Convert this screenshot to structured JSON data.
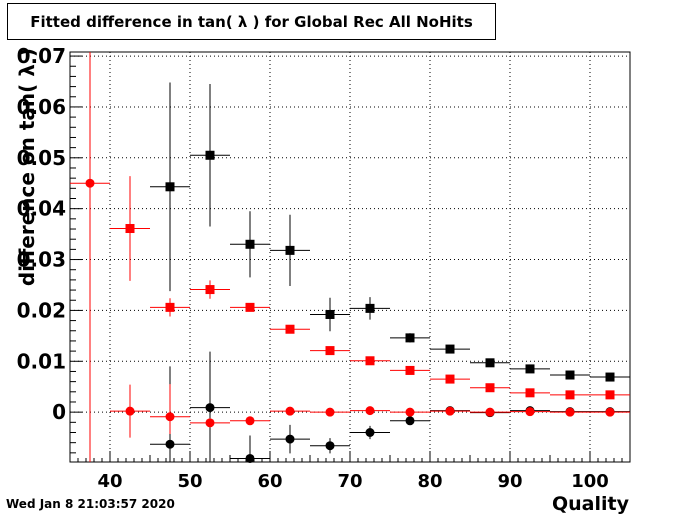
{
  "title": "Fitted difference in tan( λ ) for Global Rec All NoHits",
  "datestamp": "Wed Jan  8 21:03:57 2020",
  "chart_data": {
    "type": "scatter",
    "title": "Fitted difference in tan( λ ) for Global Rec All NoHits",
    "xlabel": "Quality",
    "ylabel": "difference on tan( λ )",
    "xlim": [
      35,
      105
    ],
    "ylim": [
      -0.0098,
      0.0708
    ],
    "grid": true,
    "x_ticks": [
      40,
      50,
      60,
      70,
      80,
      90,
      100
    ],
    "x_tick_labels": [
      "40",
      "50",
      "60",
      "70",
      "80",
      "90",
      "100"
    ],
    "y_ticks": [
      0,
      0.01,
      0.02,
      0.03,
      0.04,
      0.05,
      0.06,
      0.07
    ],
    "y_tick_labels": [
      "0",
      "0.01",
      "0.02",
      "0.03",
      "0.04",
      "0.05",
      "0.06",
      "0.07"
    ],
    "series": [
      {
        "color": "#000000",
        "marker": "square",
        "points": [
          {
            "x": 47.5,
            "y": 0.0443,
            "xerr": 2.5,
            "yerr": [
              0.0205,
              0.0205
            ]
          },
          {
            "x": 52.5,
            "y": 0.0505,
            "xerr": 2.5,
            "yerr": [
              0.014,
              0.014
            ]
          },
          {
            "x": 57.5,
            "y": 0.033,
            "xerr": 2.5,
            "yerr": [
              0.0065,
              0.0065
            ]
          },
          {
            "x": 62.5,
            "y": 0.0318,
            "xerr": 2.5,
            "yerr": [
              0.007,
              0.007
            ]
          },
          {
            "x": 67.5,
            "y": 0.0192,
            "xerr": 2.5,
            "yerr": [
              0.0033,
              0.0033
            ]
          },
          {
            "x": 72.5,
            "y": 0.0204,
            "xerr": 2.5,
            "yerr": [
              0.0022,
              0.0022
            ]
          },
          {
            "x": 77.5,
            "y": 0.0146,
            "xerr": 2.5,
            "yerr": [
              0.0009,
              0.0009
            ]
          },
          {
            "x": 82.5,
            "y": 0.0124,
            "xerr": 2.5,
            "yerr": [
              0.0005,
              0.0005
            ]
          },
          {
            "x": 87.5,
            "y": 0.0097,
            "xerr": 2.5,
            "yerr": [
              0.0004,
              0.0004
            ]
          },
          {
            "x": 92.5,
            "y": 0.0085,
            "xerr": 2.5,
            "yerr": [
              0.0003,
              0.0003
            ]
          },
          {
            "x": 97.5,
            "y": 0.0073,
            "xerr": 2.5,
            "yerr": [
              0.0002,
              0.0002
            ]
          },
          {
            "x": 102.5,
            "y": 0.0069,
            "xerr": 2.5,
            "yerr": [
              0.0002,
              0.0002
            ]
          }
        ]
      },
      {
        "color": "#ff0000",
        "marker": "square",
        "points": [
          {
            "x": 42.5,
            "y": 0.0361,
            "xerr": 2.5,
            "yerr": [
              0.0103,
              0.0103
            ]
          },
          {
            "x": 47.5,
            "y": 0.0206,
            "xerr": 2.5,
            "yerr": [
              0.0018,
              0.0018
            ]
          },
          {
            "x": 52.5,
            "y": 0.0241,
            "xerr": 2.5,
            "yerr": [
              0.0018,
              0.0018
            ]
          },
          {
            "x": 57.5,
            "y": 0.0206,
            "xerr": 2.5,
            "yerr": [
              0.0008,
              0.0008
            ]
          },
          {
            "x": 62.5,
            "y": 0.0163,
            "xerr": 2.5,
            "yerr": [
              0.0005,
              0.0005
            ]
          },
          {
            "x": 67.5,
            "y": 0.0121,
            "xerr": 2.5,
            "yerr": [
              0.0004,
              0.0004
            ]
          },
          {
            "x": 72.5,
            "y": 0.0101,
            "xerr": 2.5,
            "yerr": [
              0.0003,
              0.0003
            ]
          },
          {
            "x": 77.5,
            "y": 0.0082,
            "xerr": 2.5,
            "yerr": [
              0.0002,
              0.0002
            ]
          },
          {
            "x": 82.5,
            "y": 0.0065,
            "xerr": 2.5,
            "yerr": [
              0.0002,
              0.0002
            ]
          },
          {
            "x": 87.5,
            "y": 0.0048,
            "xerr": 2.5,
            "yerr": [
              0.0002,
              0.0002
            ]
          },
          {
            "x": 92.5,
            "y": 0.0038,
            "xerr": 2.5,
            "yerr": [
              0.0002,
              0.0002
            ]
          },
          {
            "x": 97.5,
            "y": 0.0034,
            "xerr": 2.5,
            "yerr": [
              0.0002,
              0.0002
            ]
          },
          {
            "x": 102.5,
            "y": 0.0034,
            "xerr": 2.5,
            "yerr": [
              0.0002,
              0.0002
            ]
          }
        ]
      },
      {
        "color": "#000000",
        "marker": "circle",
        "points": [
          {
            "x": 47.5,
            "y": -0.0063,
            "xerr": 2.5,
            "yerr": [
              0.0035,
              0.0153
            ]
          },
          {
            "x": 52.5,
            "y": 0.0009,
            "xerr": 2.5,
            "yerr": [
              0.011,
              0.011
            ]
          },
          {
            "x": 57.5,
            "y": -0.0091,
            "xerr": 2.5,
            "yerr": [
              0.0007,
              0.0045
            ]
          },
          {
            "x": 62.5,
            "y": -0.0053,
            "xerr": 2.5,
            "yerr": [
              0.0028,
              0.0028
            ]
          },
          {
            "x": 67.5,
            "y": -0.0066,
            "xerr": 2.5,
            "yerr": [
              0.0015,
              0.0015
            ]
          },
          {
            "x": 72.5,
            "y": -0.004,
            "xerr": 2.5,
            "yerr": [
              0.0013,
              0.0013
            ]
          },
          {
            "x": 77.5,
            "y": -0.0017,
            "xerr": 2.5,
            "yerr": [
              0.0006,
              0.0006
            ]
          },
          {
            "x": 82.5,
            "y": 0.0003,
            "xerr": 2.5,
            "yerr": [
              0.0003,
              0.0003
            ]
          },
          {
            "x": 87.5,
            "y": -0.0001,
            "xerr": 2.5,
            "yerr": [
              0.0002,
              0.0002
            ]
          },
          {
            "x": 92.5,
            "y": 0.0003,
            "xerr": 2.5,
            "yerr": [
              0.0002,
              0.0002
            ]
          },
          {
            "x": 97.5,
            "y": 0.0001,
            "xerr": 2.5,
            "yerr": [
              0.0001,
              0.0001
            ]
          },
          {
            "x": 102.5,
            "y": 0.0001,
            "xerr": 2.5,
            "yerr": [
              0.0001,
              0.0001
            ]
          }
        ]
      },
      {
        "color": "#ff0000",
        "marker": "circle",
        "points": [
          {
            "x": 37.5,
            "y": 0.045,
            "xerr": 2.5,
            "yerr": [
              0.0548,
              0.0258
            ]
          },
          {
            "x": 42.5,
            "y": 0.0002,
            "xerr": 2.5,
            "yerr": [
              0.0052,
              0.0052
            ]
          },
          {
            "x": 47.5,
            "y": -0.0009,
            "xerr": 2.5,
            "yerr": [
              0.0034,
              0.0064
            ]
          },
          {
            "x": 52.5,
            "y": -0.0021,
            "xerr": 2.5,
            "yerr": [
              0.0009,
              0.0009
            ]
          },
          {
            "x": 57.5,
            "y": -0.0017,
            "xerr": 2.5,
            "yerr": [
              0.0005,
              0.0005
            ]
          },
          {
            "x": 62.5,
            "y": 0.0002,
            "xerr": 2.5,
            "yerr": [
              0.0003,
              0.0003
            ]
          },
          {
            "x": 67.5,
            "y": 0.0,
            "xerr": 2.5,
            "yerr": [
              0.0002,
              0.0002
            ]
          },
          {
            "x": 72.5,
            "y": 0.0003,
            "xerr": 2.5,
            "yerr": [
              0.0002,
              0.0002
            ]
          },
          {
            "x": 77.5,
            "y": 0.0,
            "xerr": 2.5,
            "yerr": [
              0.0001,
              0.0001
            ]
          },
          {
            "x": 82.5,
            "y": 0.0002,
            "xerr": 2.5,
            "yerr": [
              0.0001,
              0.0001
            ]
          },
          {
            "x": 87.5,
            "y": 0.0,
            "xerr": 2.5,
            "yerr": [
              0.0001,
              0.0001
            ]
          },
          {
            "x": 92.5,
            "y": 0.0001,
            "xerr": 2.5,
            "yerr": [
              0.0001,
              0.0001
            ]
          },
          {
            "x": 97.5,
            "y": 0.0,
            "xerr": 2.5,
            "yerr": [
              0.0001,
              0.0001
            ]
          },
          {
            "x": 102.5,
            "y": 0.0,
            "xerr": 2.5,
            "yerr": [
              0.0001,
              0.0001
            ]
          }
        ]
      }
    ]
  }
}
